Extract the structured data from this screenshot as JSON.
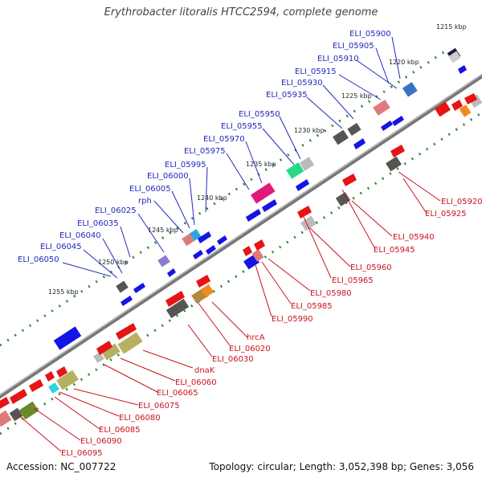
{
  "title": "Erythrobacter litoralis HTCC2594, complete genome",
  "footer": {
    "accession": "Accession: NC_007722",
    "summary": "Topology: circular; Length: 3,052,398 bp; Genes: 3,056"
  },
  "ticks": [
    "1215 kbp",
    "1220 kbp",
    "1225 kbp",
    "1230 kbp",
    "1235 kbp",
    "1240 kbp",
    "1245 kbp",
    "1250 kbp",
    "1255 kbp"
  ],
  "forward_labels": [
    "ELI_05900",
    "ELI_05905",
    "ELI_05910",
    "ELI_05915",
    "ELI_05930",
    "ELI_05935",
    "ELI_05950",
    "ELI_05955",
    "ELI_05970",
    "ELI_05975",
    "ELI_05995",
    "ELI_06000",
    "ELI_06005",
    "rph",
    "ELI_06025",
    "ELI_06035",
    "ELI_06040",
    "ELI_06045",
    "ELI_06050"
  ],
  "reverse_labels": [
    "ELI_05920",
    "ELI_05925",
    "ELI_05940",
    "ELI_05945",
    "ELI_05960",
    "ELI_05965",
    "ELI_05980",
    "ELI_05985",
    "ELI_05990",
    "hrcA",
    "ELI_06020",
    "ELI_06030",
    "dnaK",
    "ELI_06060",
    "ELI_06065",
    "ELI_06075",
    "ELI_06080",
    "ELI_06085",
    "ELI_06090",
    "ELI_06095"
  ],
  "colors": {
    "forward_label": "#1f2bb8",
    "reverse_label": "#c8141e",
    "forward_gene": "#1414e6",
    "reverse_gene": "#e61414",
    "backbone": "#888888",
    "tick_dot": "#2a8a2a"
  }
}
